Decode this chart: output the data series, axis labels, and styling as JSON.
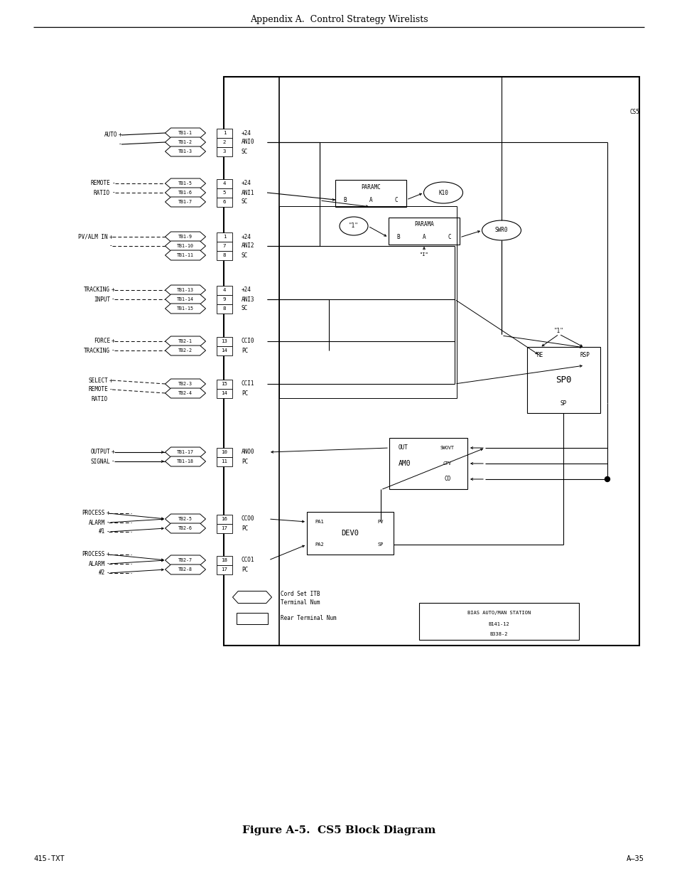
{
  "title": "Appendix A.  Control Strategy Wirelists",
  "figure_title": "Figure A-5.  CS5 Block Diagram",
  "footer_left": "415-TXT",
  "footer_right": "A–35",
  "bg_color": "#ffffff"
}
